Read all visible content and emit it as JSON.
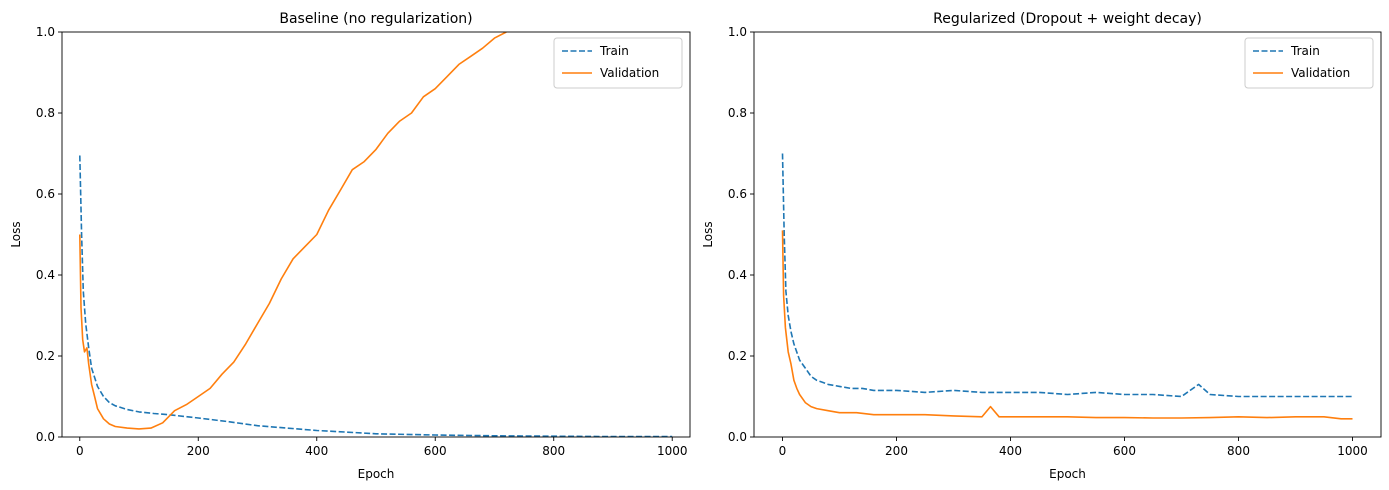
{
  "chart_data": [
    {
      "type": "line",
      "title": "Baseline (no regularization)",
      "xlabel": "Epoch",
      "ylabel": "Loss",
      "xlim": [
        -30,
        1030
      ],
      "ylim": [
        0,
        1.0
      ],
      "xticks": [
        "0",
        "200",
        "400",
        "600",
        "800",
        "1000"
      ],
      "yticks": [
        "0.0",
        "0.2",
        "0.4",
        "0.6",
        "0.8",
        "1.0"
      ],
      "legend_position": "top-right",
      "grid": false,
      "series": [
        {
          "name": "Train",
          "color": "#1f77b4",
          "style": "dashed",
          "x": [
            0,
            3,
            6,
            10,
            15,
            20,
            30,
            40,
            50,
            60,
            80,
            100,
            125,
            150,
            200,
            250,
            300,
            350,
            400,
            450,
            500,
            600,
            700,
            800,
            900,
            1000
          ],
          "y": [
            0.695,
            0.5,
            0.36,
            0.28,
            0.22,
            0.17,
            0.125,
            0.1,
            0.085,
            0.077,
            0.068,
            0.062,
            0.058,
            0.055,
            0.047,
            0.038,
            0.028,
            0.022,
            0.016,
            0.012,
            0.008,
            0.005,
            0.003,
            0.002,
            0.001,
            0.001
          ]
        },
        {
          "name": "Validation",
          "color": "#ff7f0e",
          "style": "solid",
          "x": [
            0,
            2,
            5,
            8,
            12,
            15,
            20,
            25,
            30,
            40,
            50,
            60,
            80,
            100,
            120,
            140,
            160,
            180,
            200,
            220,
            240,
            260,
            280,
            300,
            320,
            340,
            360,
            380,
            400,
            420,
            440,
            460,
            480,
            500,
            520,
            540,
            560,
            580,
            600,
            620,
            640,
            660,
            680,
            700,
            720
          ],
          "y": [
            0.5,
            0.32,
            0.24,
            0.21,
            0.22,
            0.18,
            0.13,
            0.1,
            0.07,
            0.045,
            0.032,
            0.026,
            0.022,
            0.02,
            0.022,
            0.035,
            0.065,
            0.08,
            0.1,
            0.12,
            0.155,
            0.185,
            0.23,
            0.28,
            0.33,
            0.39,
            0.44,
            0.47,
            0.5,
            0.56,
            0.61,
            0.66,
            0.68,
            0.71,
            0.75,
            0.78,
            0.8,
            0.84,
            0.86,
            0.89,
            0.92,
            0.94,
            0.96,
            0.985,
            1.0
          ]
        }
      ]
    },
    {
      "type": "line",
      "title": "Regularized (Dropout + weight decay)",
      "xlabel": "Epoch",
      "ylabel": "Loss",
      "xlim": [
        -50,
        1050
      ],
      "ylim": [
        0,
        1.0
      ],
      "xticks": [
        "0",
        "200",
        "400",
        "600",
        "800",
        "1000"
      ],
      "yticks": [
        "0.0",
        "0.2",
        "0.4",
        "0.6",
        "0.8",
        "1.0"
      ],
      "legend_position": "top-right",
      "grid": false,
      "series": [
        {
          "name": "Train",
          "color": "#1f77b4",
          "style": "dashed",
          "x": [
            0,
            3,
            6,
            10,
            15,
            20,
            30,
            40,
            50,
            60,
            70,
            80,
            100,
            120,
            140,
            160,
            200,
            250,
            300,
            350,
            400,
            450,
            500,
            550,
            600,
            650,
            700,
            730,
            750,
            800,
            850,
            900,
            950,
            1000
          ],
          "y": [
            0.7,
            0.5,
            0.36,
            0.3,
            0.26,
            0.23,
            0.19,
            0.17,
            0.15,
            0.14,
            0.135,
            0.13,
            0.125,
            0.12,
            0.12,
            0.115,
            0.115,
            0.11,
            0.115,
            0.11,
            0.11,
            0.11,
            0.105,
            0.11,
            0.105,
            0.105,
            0.1,
            0.13,
            0.105,
            0.1,
            0.1,
            0.1,
            0.1,
            0.1
          ]
        },
        {
          "name": "Validation",
          "color": "#ff7f0e",
          "style": "solid",
          "x": [
            0,
            2,
            5,
            10,
            15,
            20,
            25,
            30,
            40,
            50,
            60,
            80,
            100,
            130,
            160,
            200,
            250,
            300,
            350,
            365,
            380,
            400,
            450,
            500,
            550,
            600,
            650,
            700,
            750,
            800,
            850,
            900,
            950,
            980,
            1000
          ],
          "y": [
            0.51,
            0.35,
            0.27,
            0.21,
            0.18,
            0.14,
            0.12,
            0.105,
            0.085,
            0.075,
            0.07,
            0.065,
            0.06,
            0.06,
            0.055,
            0.055,
            0.055,
            0.052,
            0.05,
            0.075,
            0.05,
            0.05,
            0.05,
            0.05,
            0.048,
            0.048,
            0.047,
            0.047,
            0.048,
            0.05,
            0.048,
            0.05,
            0.05,
            0.045,
            0.045
          ]
        }
      ]
    }
  ]
}
